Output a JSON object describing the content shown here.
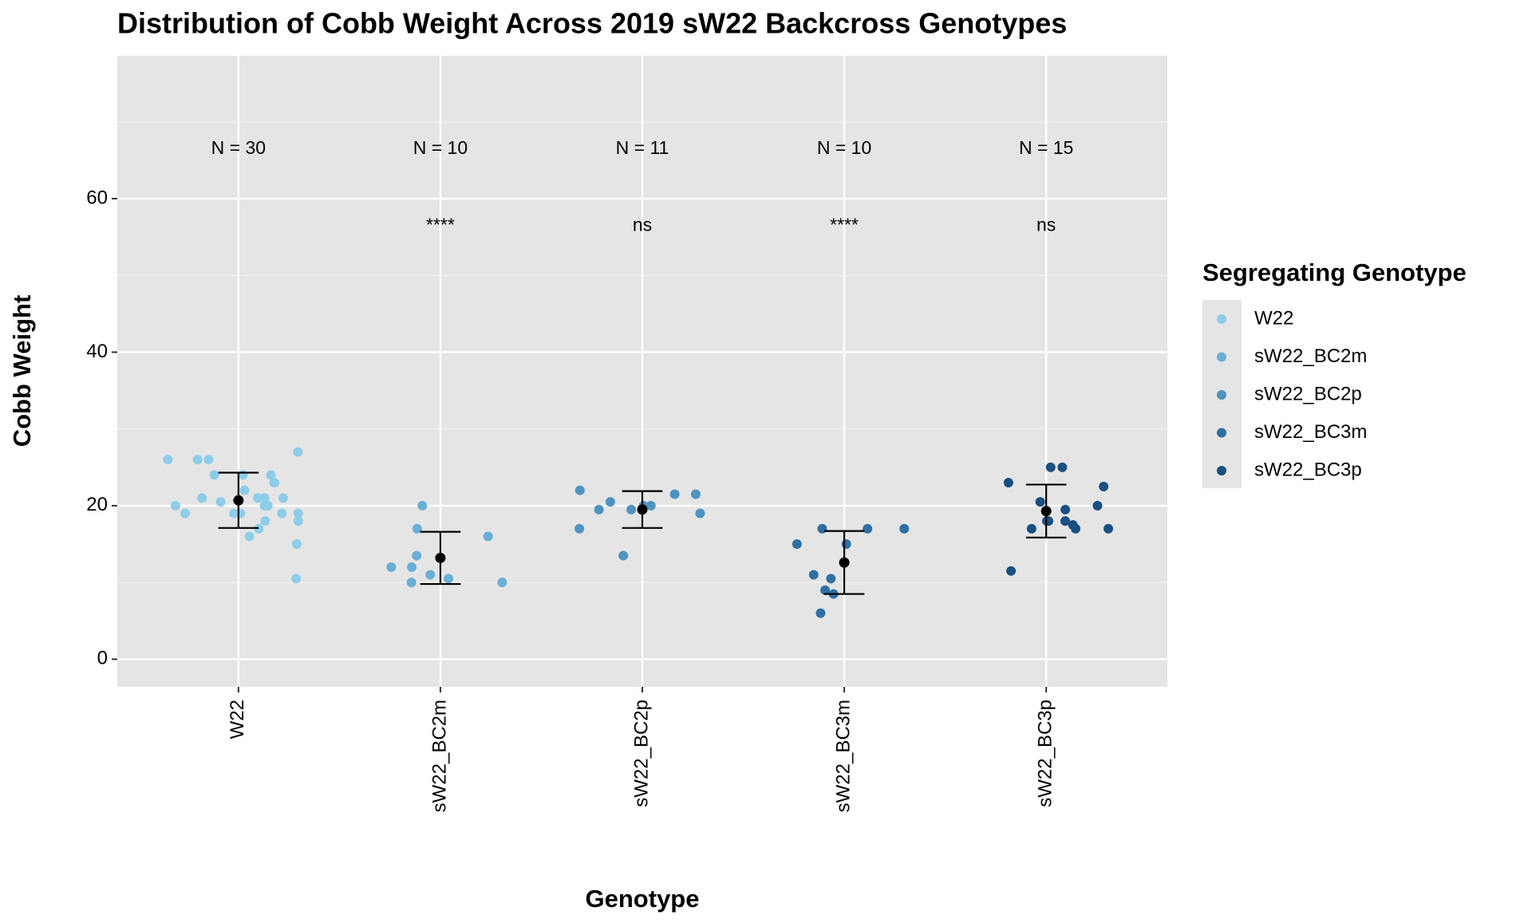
{
  "chart_data": {
    "type": "strip",
    "title": "Distribution of Cobb Weight Across 2019 sW22 Backcross Genotypes",
    "x_label": "Genotype",
    "y_label": "Cobb Weight",
    "legend_title": "Segregating Genotype",
    "categories": [
      "W22",
      "sW22_BC2m",
      "sW22_BC2p",
      "sW22_BC3m",
      "sW22_BC3p"
    ],
    "n_labels": [
      "N = 30",
      "N = 10",
      "N = 11",
      "N = 10",
      "N = 15"
    ],
    "significance": [
      null,
      "****",
      "ns",
      "****",
      "ns"
    ],
    "ylim": [
      -3.6,
      78.6
    ],
    "yticks": [
      0,
      20,
      40,
      60
    ],
    "grid": true,
    "series": [
      {
        "name": "W22",
        "color": "#8ecde8",
        "values": [
          26,
          27,
          26,
          26,
          24,
          24,
          24,
          23,
          23,
          22,
          21,
          21,
          21,
          21,
          20.5,
          20,
          20,
          20,
          20,
          19,
          19,
          19,
          19,
          19,
          18,
          18,
          17,
          16,
          15,
          10.5
        ],
        "mean": 20.7,
        "sd": 3.6
      },
      {
        "name": "sW22_BC2m",
        "color": "#6aafd6",
        "values": [
          20,
          17,
          16,
          13.5,
          12,
          12,
          11,
          10,
          10,
          10.5
        ],
        "mean": 13.2,
        "sd": 3.4
      },
      {
        "name": "sW22_BC2p",
        "color": "#4f93c0",
        "values": [
          21.5,
          21.5,
          22,
          20.5,
          20,
          20,
          19.5,
          19.5,
          19,
          17,
          13.5
        ],
        "mean": 19.5,
        "sd": 2.4
      },
      {
        "name": "sW22_BC3m",
        "color": "#2f6fa4",
        "values": [
          17,
          17,
          17,
          15,
          15,
          10.5,
          11,
          9,
          8.5,
          6
        ],
        "mean": 12.6,
        "sd": 4.1
      },
      {
        "name": "sW22_BC3p",
        "color": "#1a4f80",
        "values": [
          25,
          25,
          23,
          22.5,
          20.5,
          20,
          19.5,
          18,
          18,
          18,
          17.5,
          17,
          17,
          17,
          11.5
        ],
        "mean": 19.3,
        "sd": 3.45
      }
    ]
  }
}
